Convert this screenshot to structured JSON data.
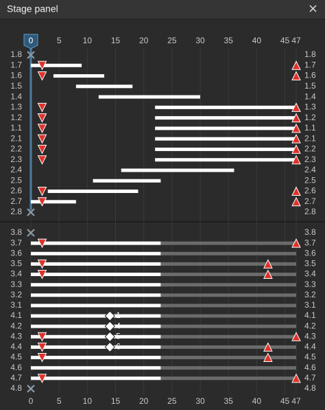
{
  "header": {
    "title": "Stage panel"
  },
  "axis": {
    "xlim": [
      0,
      47
    ],
    "ticks": [
      0,
      5,
      10,
      15,
      20,
      25,
      30,
      35,
      40,
      45,
      47
    ],
    "cursor": 0
  },
  "sections": [
    {
      "rows": [
        {
          "label": "1.8",
          "cross": 0
        },
        {
          "label": "1.7",
          "bar": [
            0,
            9
          ],
          "down": 2,
          "up": 47
        },
        {
          "label": "1.6",
          "bar": [
            4,
            13
          ],
          "down": 2,
          "up": 47
        },
        {
          "label": "1.5",
          "bar": [
            8,
            18
          ]
        },
        {
          "label": "1.4",
          "bar": [
            12,
            30
          ]
        },
        {
          "label": "1.3",
          "bar": [
            22,
            47
          ],
          "down": 2,
          "up": 47
        },
        {
          "label": "1.2",
          "bar": [
            22,
            47
          ],
          "down": 2,
          "up": 47
        },
        {
          "label": "1.1",
          "bar": [
            22,
            47
          ],
          "down": 2,
          "up": 47
        },
        {
          "label": "2.1",
          "bar": [
            22,
            47
          ],
          "down": 2,
          "up": 47
        },
        {
          "label": "2.2",
          "bar": [
            22,
            47
          ],
          "down": 2,
          "up": 47
        },
        {
          "label": "2.3",
          "bar": [
            22,
            47
          ],
          "down": 2,
          "up": 47
        },
        {
          "label": "2.4",
          "bar": [
            16,
            36
          ]
        },
        {
          "label": "2.5",
          "bar": [
            11,
            23
          ]
        },
        {
          "label": "2.6",
          "bar": [
            3,
            19
          ],
          "down": 2,
          "up": 47
        },
        {
          "label": "2.7",
          "bar": [
            0,
            8
          ],
          "down": 2,
          "up": 47
        },
        {
          "label": "2.8",
          "cross": 0
        }
      ]
    },
    {
      "rows": [
        {
          "label": "3.8",
          "cross": 0
        },
        {
          "label": "3.7",
          "bar": [
            0,
            23
          ],
          "tail": [
            23,
            47
          ],
          "down": 2,
          "up": 47
        },
        {
          "label": "3.6",
          "bar": [
            0,
            23
          ],
          "tail": [
            23,
            47
          ]
        },
        {
          "label": "3.5",
          "bar": [
            0,
            23
          ],
          "tail": [
            23,
            47
          ],
          "down": 2,
          "up": 42
        },
        {
          "label": "3.4",
          "bar": [
            0,
            23
          ],
          "tail": [
            23,
            47
          ],
          "down": 2,
          "up": 42
        },
        {
          "label": "3.3",
          "bar": [
            0,
            23
          ],
          "tail": [
            23,
            47
          ]
        },
        {
          "label": "3.2",
          "bar": [
            0,
            23
          ],
          "tail": [
            23,
            47
          ]
        },
        {
          "label": "3.1",
          "bar": [
            0,
            23
          ],
          "tail": [
            23,
            47
          ]
        },
        {
          "label": "4.1",
          "bar": [
            0,
            23
          ],
          "tail": [
            23,
            47
          ],
          "diamond": 14,
          "diamond_label": "1"
        },
        {
          "label": "4.2",
          "bar": [
            0,
            23
          ],
          "tail": [
            23,
            47
          ],
          "diamond": 14,
          "diamond_label": "4"
        },
        {
          "label": "4.3",
          "bar": [
            0,
            23
          ],
          "tail": [
            23,
            47
          ],
          "diamond": 14,
          "diamond_label": "5",
          "down": 2,
          "up": 47
        },
        {
          "label": "4.4",
          "bar": [
            0,
            23
          ],
          "tail": [
            23,
            47
          ],
          "diamond": 14,
          "diamond_label": "6",
          "down": 2,
          "up": 42
        },
        {
          "label": "4.5",
          "bar": [
            0,
            23
          ],
          "tail": [
            23,
            47
          ],
          "down": 2,
          "up": 42
        },
        {
          "label": "4.6",
          "bar": [
            0,
            23
          ],
          "tail": [
            23,
            47
          ]
        },
        {
          "label": "4.7",
          "bar": [
            0,
            23
          ],
          "tail": [
            23,
            47
          ],
          "down": 2,
          "up": 47
        },
        {
          "label": "4.8",
          "cross": 0
        }
      ]
    }
  ]
}
